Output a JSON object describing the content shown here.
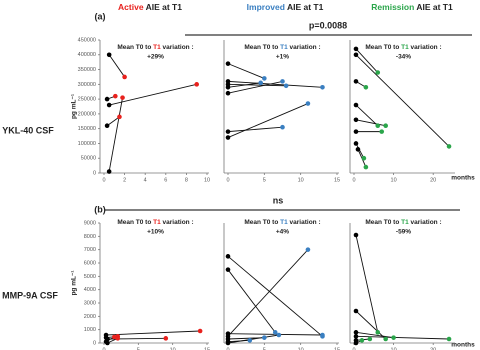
{
  "columns": [
    {
      "highlight": "Active",
      "rest": " AIE at T1",
      "color": "#e8211d"
    },
    {
      "highlight": "Improved",
      "rest": " AIE at T1",
      "color": "#3a7fc1"
    },
    {
      "highlight": "Remission",
      "rest": " AIE at T1",
      "color": "#2aa54a"
    }
  ],
  "panels": [
    {
      "label": "(a)",
      "row_label": "YKL-40 CSF",
      "comparison": "p=0.0088"
    },
    {
      "label": "(b)",
      "row_label": "MMP-9A CSF",
      "comparison": "ns"
    }
  ],
  "x_unit": "months",
  "chart_data": [
    {
      "type": "line",
      "title_parts": [
        "Mean T0 to ",
        "T1",
        " variation :"
      ],
      "variation": "+29%",
      "ylabel": "pg mL⁻¹",
      "marker_colors": [
        "#000000",
        "#e8211d"
      ],
      "xlim": [
        0,
        10
      ],
      "xticks": [
        0,
        2,
        4,
        6,
        8,
        10
      ],
      "ylim": [
        0,
        450000
      ],
      "yticks": [
        0,
        50000,
        100000,
        150000,
        200000,
        250000,
        300000,
        350000,
        400000,
        450000
      ],
      "series": [
        {
          "x": [
            0.5,
            2.0
          ],
          "values": [
            400000,
            325000
          ]
        },
        {
          "x": [
            0.3,
            1.1
          ],
          "values": [
            250000,
            260000
          ]
        },
        {
          "x": [
            0.5,
            9.0
          ],
          "values": [
            230000,
            300000
          ]
        },
        {
          "x": [
            0.3,
            1.5
          ],
          "values": [
            160000,
            190000
          ]
        },
        {
          "x": [
            0.5,
            1.8
          ],
          "values": [
            5000,
            255000
          ]
        }
      ]
    },
    {
      "type": "line",
      "title_parts": [
        "Mean T0 to ",
        "T1",
        " variation :"
      ],
      "variation": "+1%",
      "marker_colors": [
        "#000000",
        "#3a7fc1"
      ],
      "xlim": [
        0,
        15
      ],
      "xticks": [
        0,
        5,
        10,
        15
      ],
      "ylim": [
        0,
        450000
      ],
      "series": [
        {
          "x": [
            0,
            5
          ],
          "values": [
            370000,
            320000
          ]
        },
        {
          "x": [
            0,
            13
          ],
          "values": [
            310000,
            290000
          ]
        },
        {
          "x": [
            0,
            8
          ],
          "values": [
            300000,
            295000
          ]
        },
        {
          "x": [
            0,
            4.5
          ],
          "values": [
            290000,
            305000
          ]
        },
        {
          "x": [
            0,
            7.5
          ],
          "values": [
            270000,
            310000
          ]
        },
        {
          "x": [
            0,
            7.5
          ],
          "values": [
            140000,
            155000
          ]
        },
        {
          "x": [
            0,
            11
          ],
          "values": [
            120000,
            235000
          ]
        }
      ]
    },
    {
      "type": "line",
      "title_parts": [
        "Mean T0 to ",
        "T1",
        " variation :"
      ],
      "variation": "-34%",
      "marker_colors": [
        "#000000",
        "#2aa54a"
      ],
      "xlim": [
        0,
        25
      ],
      "xticks": [
        0,
        10,
        20
      ],
      "ylim": [
        0,
        450000
      ],
      "series": [
        {
          "x": [
            0.5,
            6
          ],
          "values": [
            420000,
            340000
          ]
        },
        {
          "x": [
            0.5,
            24
          ],
          "values": [
            400000,
            90000
          ]
        },
        {
          "x": [
            0.5,
            3
          ],
          "values": [
            310000,
            290000
          ]
        },
        {
          "x": [
            0.5,
            6
          ],
          "values": [
            230000,
            160000
          ]
        },
        {
          "x": [
            0.5,
            8
          ],
          "values": [
            180000,
            160000
          ]
        },
        {
          "x": [
            0.5,
            7
          ],
          "values": [
            140000,
            140000
          ]
        },
        {
          "x": [
            0.5,
            2.5
          ],
          "values": [
            100000,
            50000
          ]
        },
        {
          "x": [
            1,
            3
          ],
          "values": [
            80000,
            20000
          ]
        }
      ]
    },
    {
      "type": "line",
      "title_parts": [
        "Mean T0 to ",
        "T1",
        " variation :"
      ],
      "variation": "+10%",
      "ylabel": "pg mL⁻¹",
      "marker_colors": [
        "#000000",
        "#e8211d"
      ],
      "xlim": [
        0,
        15
      ],
      "xticks": [
        0,
        5,
        10,
        15
      ],
      "ylim": [
        0,
        9000
      ],
      "yticks": [
        0,
        1000,
        2000,
        3000,
        4000,
        5000,
        6000,
        7000,
        8000,
        9000
      ],
      "series": [
        {
          "x": [
            0.3,
            14
          ],
          "values": [
            600,
            900
          ]
        },
        {
          "x": [
            0.3,
            2
          ],
          "values": [
            400,
            500
          ]
        },
        {
          "x": [
            0.5,
            9
          ],
          "values": [
            300,
            350
          ]
        },
        {
          "x": [
            0.3,
            1.5
          ],
          "values": [
            100,
            450
          ]
        },
        {
          "x": [
            0.5,
            2
          ],
          "values": [
            0,
            350
          ]
        }
      ]
    },
    {
      "type": "line",
      "title_parts": [
        "Mean T0 to ",
        "T1",
        " variation :"
      ],
      "variation": "+4%",
      "marker_colors": [
        "#000000",
        "#3a7fc1"
      ],
      "xlim": [
        0,
        15
      ],
      "xticks": [
        0,
        5,
        10,
        15
      ],
      "ylim": [
        0,
        9000
      ],
      "series": [
        {
          "x": [
            0,
            13
          ],
          "values": [
            6500,
            500
          ]
        },
        {
          "x": [
            0,
            6.5
          ],
          "values": [
            5500,
            800
          ]
        },
        {
          "x": [
            0,
            13
          ],
          "values": [
            700,
            600
          ]
        },
        {
          "x": [
            0,
            11
          ],
          "values": [
            500,
            7000
          ]
        },
        {
          "x": [
            0,
            5
          ],
          "values": [
            300,
            400
          ]
        },
        {
          "x": [
            0,
            3
          ],
          "values": [
            100,
            200
          ]
        },
        {
          "x": [
            0,
            7
          ],
          "values": [
            0,
            600
          ]
        }
      ]
    },
    {
      "type": "line",
      "title_parts": [
        "Mean T0 to ",
        "T1",
        " variation :"
      ],
      "variation": "-59%",
      "marker_colors": [
        "#000000",
        "#2aa54a"
      ],
      "xlim": [
        0,
        25
      ],
      "xticks": [
        0,
        10,
        20
      ],
      "ylim": [
        0,
        9000
      ],
      "series": [
        {
          "x": [
            0.5,
            6
          ],
          "values": [
            8100,
            800
          ]
        },
        {
          "x": [
            0.5,
            8
          ],
          "values": [
            2400,
            300
          ]
        },
        {
          "x": [
            0.5,
            10
          ],
          "values": [
            800,
            400
          ]
        },
        {
          "x": [
            0.5,
            24
          ],
          "values": [
            500,
            300
          ]
        },
        {
          "x": [
            0.5,
            4
          ],
          "values": [
            200,
            300
          ]
        },
        {
          "x": [
            0.5,
            2
          ],
          "values": [
            0,
            200
          ]
        }
      ]
    }
  ]
}
